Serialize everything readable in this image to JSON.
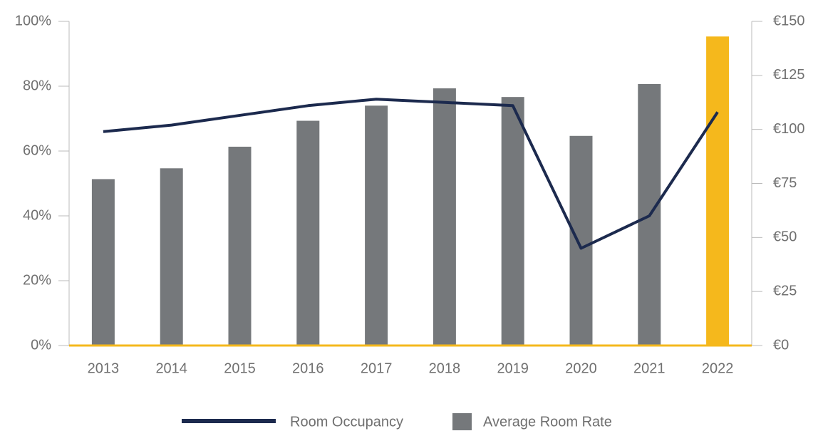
{
  "chart_data": {
    "type": "combo",
    "categories": [
      "2013",
      "2014",
      "2015",
      "2016",
      "2017",
      "2018",
      "2019",
      "2020",
      "2021",
      "2022"
    ],
    "series": [
      {
        "name": "Room Occupancy",
        "type": "line",
        "axis": "y",
        "color": "#1c2a4e",
        "values": [
          66,
          68,
          71,
          74,
          76,
          75,
          74,
          30,
          40,
          72
        ]
      },
      {
        "name": "Average Room Rate",
        "type": "bar",
        "axis": "y2",
        "color": "#75787b",
        "colors": [
          "#75787b",
          "#75787b",
          "#75787b",
          "#75787b",
          "#75787b",
          "#75787b",
          "#75787b",
          "#75787b",
          "#75787b",
          "#f5b81c"
        ],
        "values": [
          77,
          82,
          92,
          104,
          111,
          119,
          115,
          97,
          121,
          143
        ]
      }
    ],
    "ylim": [
      0,
      100
    ],
    "yticks": [
      {
        "value": 0,
        "label": "0%"
      },
      {
        "value": 20,
        "label": "20%"
      },
      {
        "value": 40,
        "label": "40%"
      },
      {
        "value": 60,
        "label": "60%"
      },
      {
        "value": 80,
        "label": "80%"
      },
      {
        "value": 100,
        "label": "100%"
      }
    ],
    "y2lim": [
      0,
      150
    ],
    "y2ticks": [
      {
        "value": 0,
        "label": "€0"
      },
      {
        "value": 25,
        "label": "€25"
      },
      {
        "value": 50,
        "label": "€50"
      },
      {
        "value": 75,
        "label": "€75"
      },
      {
        "value": 100,
        "label": "€100"
      },
      {
        "value": 125,
        "label": "€125"
      },
      {
        "value": 150,
        "label": "€150"
      }
    ],
    "baseline_color": "#f5b81c",
    "legend": "bottom"
  }
}
